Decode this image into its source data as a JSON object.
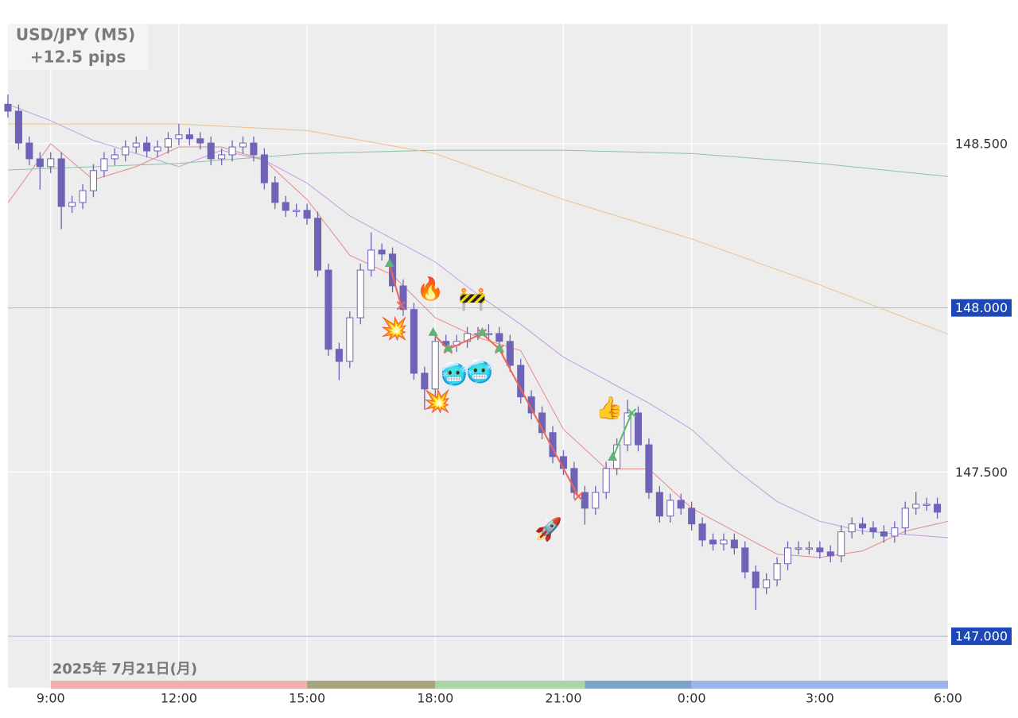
{
  "chart_data": {
    "type": "candlestick",
    "title": "USD/JPY (M5)",
    "subtitle": "+12.5 pips",
    "date_label": "2025年 7月21日(月)",
    "xlim": [
      8,
      30
    ],
    "xticks": [
      {
        "value": 9,
        "label": "9:00"
      },
      {
        "value": 12,
        "label": "12:00"
      },
      {
        "value": 15,
        "label": "15:00"
      },
      {
        "value": 18,
        "label": "18:00"
      },
      {
        "value": 21,
        "label": "21:00"
      },
      {
        "value": 24,
        "label": "0:00"
      },
      {
        "value": 27,
        "label": "3:00"
      },
      {
        "value": 30,
        "label": "6:00"
      }
    ],
    "ylim": [
      146.843,
      148.865
    ],
    "yticks": [
      {
        "value": 147,
        "label": "147.000"
      },
      {
        "value": 147.5,
        "label": "147.500"
      },
      {
        "value": 148,
        "label": "148.000"
      },
      {
        "value": 148.5,
        "label": "148.500"
      }
    ],
    "hlines": [
      148,
      147
    ],
    "grid": true,
    "candle_color": "#6f63b8",
    "x": [
      8,
      8.25,
      8.5,
      8.75,
      9,
      9.25,
      9.5,
      9.75,
      10,
      10.25,
      10.5,
      10.75,
      11,
      11.25,
      11.5,
      11.75,
      12,
      12.25,
      12.5,
      12.75,
      13,
      13.25,
      13.5,
      13.75,
      14,
      14.25,
      14.5,
      14.75,
      15,
      15.25,
      15.5,
      15.75,
      16,
      16.25,
      16.5,
      16.75,
      17,
      17.25,
      17.5,
      17.75,
      18,
      18.25,
      18.5,
      18.75,
      19,
      19.25,
      19.5,
      19.75,
      20,
      20.25,
      20.5,
      20.75,
      21,
      21.25,
      21.5,
      21.75,
      22,
      22.25,
      22.5,
      22.75,
      23,
      23.25,
      23.5,
      23.75,
      24,
      24.25,
      24.5,
      24.75,
      25,
      25.25,
      25.5,
      25.75,
      26,
      26.25,
      26.5,
      26.75,
      27,
      27.25,
      27.5,
      27.75,
      28,
      28.25,
      28.5,
      28.75,
      29,
      29.25,
      29.5,
      29.75
    ],
    "open": [
      148.62,
      148.599,
      148.502,
      148.454,
      148.43,
      148.454,
      148.309,
      148.321,
      148.357,
      148.418,
      148.454,
      148.466,
      148.49,
      148.502,
      148.478,
      148.49,
      148.515,
      148.527,
      148.515,
      148.502,
      148.454,
      148.466,
      148.49,
      148.502,
      148.466,
      148.381,
      148.321,
      148.297,
      148.297,
      148.273,
      148.115,
      147.874,
      147.837,
      147.97,
      148.115,
      148.176,
      148.164,
      148.067,
      147.995,
      147.801,
      147.753,
      147.898,
      147.886,
      147.898,
      147.922,
      147.922,
      147.922,
      147.898,
      147.825,
      147.729,
      147.68,
      147.62,
      147.547,
      147.511,
      147.438,
      147.39,
      147.438,
      147.511,
      147.583,
      147.68,
      147.583,
      147.438,
      147.366,
      147.414,
      147.39,
      147.342,
      147.293,
      147.281,
      147.293,
      147.269,
      147.196,
      147.148,
      147.172,
      147.221,
      147.269,
      147.269,
      147.269,
      147.257,
      147.245,
      147.318,
      147.342,
      147.33,
      147.318,
      147.305,
      147.33,
      147.39,
      147.402,
      147.402
    ],
    "high": [
      148.65,
      148.619,
      148.522,
      148.474,
      148.474,
      148.474,
      148.341,
      148.377,
      148.438,
      148.474,
      148.486,
      148.51,
      148.522,
      148.522,
      148.51,
      148.535,
      148.56,
      148.547,
      148.535,
      148.522,
      148.486,
      148.51,
      148.522,
      148.522,
      148.486,
      148.401,
      148.341,
      148.317,
      148.317,
      148.293,
      148.135,
      147.894,
      147.99,
      148.135,
      148.23,
      148.196,
      148.184,
      148.087,
      148.015,
      147.821,
      147.918,
      147.918,
      147.918,
      147.942,
      147.942,
      147.95,
      147.942,
      147.918,
      147.845,
      147.749,
      147.7,
      147.64,
      147.567,
      147.531,
      147.458,
      147.458,
      147.531,
      147.603,
      147.72,
      147.7,
      147.603,
      147.458,
      147.434,
      147.434,
      147.41,
      147.362,
      147.313,
      147.313,
      147.313,
      147.289,
      147.216,
      147.192,
      147.241,
      147.289,
      147.289,
      147.289,
      147.289,
      147.277,
      147.338,
      147.362,
      147.362,
      147.35,
      147.338,
      147.35,
      147.41,
      147.44,
      147.422,
      147.422
    ],
    "low": [
      148.579,
      148.482,
      148.434,
      148.36,
      148.41,
      148.24,
      148.289,
      148.301,
      148.337,
      148.398,
      148.434,
      148.446,
      148.47,
      148.458,
      148.458,
      148.47,
      148.495,
      148.495,
      148.482,
      148.434,
      148.434,
      148.446,
      148.47,
      148.446,
      148.361,
      148.301,
      148.277,
      148.277,
      148.253,
      148.095,
      147.854,
      147.78,
      147.817,
      147.95,
      148.095,
      148.144,
      148.047,
      147.975,
      147.781,
      147.69,
      147.733,
      147.866,
      147.866,
      147.878,
      147.902,
      147.902,
      147.878,
      147.805,
      147.709,
      147.66,
      147.6,
      147.527,
      147.491,
      147.418,
      147.34,
      147.37,
      147.418,
      147.491,
      147.563,
      147.563,
      147.418,
      147.346,
      147.346,
      147.37,
      147.322,
      147.273,
      147.261,
      147.261,
      147.249,
      147.176,
      147.08,
      147.128,
      147.152,
      147.201,
      147.249,
      147.249,
      147.237,
      147.225,
      147.225,
      147.298,
      147.31,
      147.298,
      147.285,
      147.285,
      147.31,
      147.37,
      147.382,
      147.358
    ],
    "close": [
      148.599,
      148.502,
      148.454,
      148.43,
      148.454,
      148.309,
      148.321,
      148.357,
      148.418,
      148.454,
      148.466,
      148.49,
      148.502,
      148.478,
      148.49,
      148.515,
      148.527,
      148.515,
      148.502,
      148.454,
      148.466,
      148.49,
      148.502,
      148.466,
      148.381,
      148.321,
      148.297,
      148.297,
      148.273,
      148.115,
      147.874,
      147.837,
      147.97,
      148.115,
      148.176,
      148.164,
      148.067,
      147.995,
      147.801,
      147.753,
      147.898,
      147.886,
      147.898,
      147.922,
      147.922,
      147.922,
      147.898,
      147.825,
      147.729,
      147.68,
      147.62,
      147.547,
      147.511,
      147.438,
      147.39,
      147.438,
      147.511,
      147.583,
      147.68,
      147.583,
      147.438,
      147.366,
      147.414,
      147.39,
      147.342,
      147.293,
      147.281,
      147.293,
      147.269,
      147.196,
      147.148,
      147.172,
      147.221,
      147.269,
      147.269,
      147.269,
      147.257,
      147.245,
      147.318,
      147.342,
      147.33,
      147.318,
      147.305,
      147.33,
      147.39,
      147.402,
      147.402,
      147.378
    ],
    "overlays": [
      {
        "color": "#e88a8a",
        "x": [
          8,
          9,
          10,
          11,
          12,
          13,
          14,
          15,
          16,
          17,
          18,
          19,
          20,
          21,
          22,
          23,
          24,
          25,
          26,
          27,
          28,
          29,
          30
        ],
        "values": [
          148.32,
          148.5,
          148.39,
          148.43,
          148.49,
          148.49,
          148.45,
          148.33,
          148.16,
          148.1,
          147.97,
          147.91,
          147.87,
          147.63,
          147.51,
          147.51,
          147.39,
          147.32,
          147.25,
          147.24,
          147.26,
          147.32,
          147.35
        ]
      },
      {
        "color": "#c49ae0",
        "x": [
          8,
          9,
          10,
          11,
          12,
          13,
          14,
          15,
          16,
          17,
          18,
          19,
          20,
          21,
          22,
          23,
          24,
          25,
          26,
          27,
          28,
          29,
          30
        ],
        "values": [
          148.62,
          148.57,
          148.51,
          148.47,
          148.43,
          148.48,
          148.45,
          148.38,
          148.28,
          148.21,
          148.14,
          148.04,
          147.95,
          147.85,
          147.78,
          147.71,
          147.63,
          147.51,
          147.41,
          147.35,
          147.32,
          147.31,
          147.3
        ]
      },
      {
        "color": "#8cc2a0",
        "x": [
          8,
          12,
          15,
          18,
          21,
          24,
          27,
          30
        ],
        "values": [
          148.42,
          148.44,
          148.47,
          148.48,
          148.48,
          148.47,
          148.44,
          148.4
        ]
      },
      {
        "color": "#f0c088",
        "x": [
          8,
          12,
          15,
          18,
          21,
          24,
          27,
          30
        ],
        "values": [
          148.56,
          148.56,
          148.54,
          148.47,
          148.33,
          148.21,
          148.07,
          147.92
        ]
      }
    ],
    "trades": [
      {
        "color": "#ee6655",
        "entry_x": 16.93,
        "entry_price": 148.132,
        "exit_x": 17.2,
        "exit_price": 148.007
      },
      {
        "color": "#ee6655",
        "entry_x": 17.95,
        "entry_price": 147.922,
        "exit_x": 18.3,
        "exit_price": 147.874
      },
      {
        "color": "#ee6655",
        "entry_x": 18.3,
        "entry_price": 147.874,
        "exit_x": 19.1,
        "exit_price": 147.922
      },
      {
        "color": "#ee6655",
        "entry_x": 19.1,
        "entry_price": 147.922,
        "exit_x": 19.5,
        "exit_price": 147.874
      },
      {
        "color": "#ee6655",
        "entry_x": 19.5,
        "entry_price": 147.874,
        "exit_x": 21.35,
        "exit_price": 147.426
      },
      {
        "color": "#55bb66",
        "entry_x": 22.15,
        "entry_price": 147.542,
        "exit_x": 22.6,
        "exit_price": 147.68
      }
    ],
    "annotations": [
      {
        "text": "💥",
        "x": 17.04,
        "y": 147.934
      },
      {
        "text": "💥",
        "x": 18.04,
        "y": 147.712
      },
      {
        "text": "🔥",
        "x": 17.89,
        "y": 148.055
      },
      {
        "text": "🚧",
        "x": 18.87,
        "y": 148.024
      },
      {
        "text": "🥶",
        "x": 18.44,
        "y": 147.794
      },
      {
        "text": "🥶",
        "x": 19.04,
        "y": 147.801
      },
      {
        "text": "🚀",
        "x": 20.65,
        "y": 147.322
      },
      {
        "text": "👍",
        "x": 22.07,
        "y": 147.692
      }
    ],
    "sessions": [
      {
        "start": 9,
        "end": 15,
        "color": "#f0aeb0"
      },
      {
        "start": 15,
        "end": 18,
        "color": "#a8a47c"
      },
      {
        "start": 18,
        "end": 21.5,
        "color": "#a8d6a8"
      },
      {
        "start": 21.5,
        "end": 24,
        "color": "#7ba4c8"
      },
      {
        "start": 24,
        "end": 30,
        "color": "#9db4ec"
      }
    ]
  }
}
